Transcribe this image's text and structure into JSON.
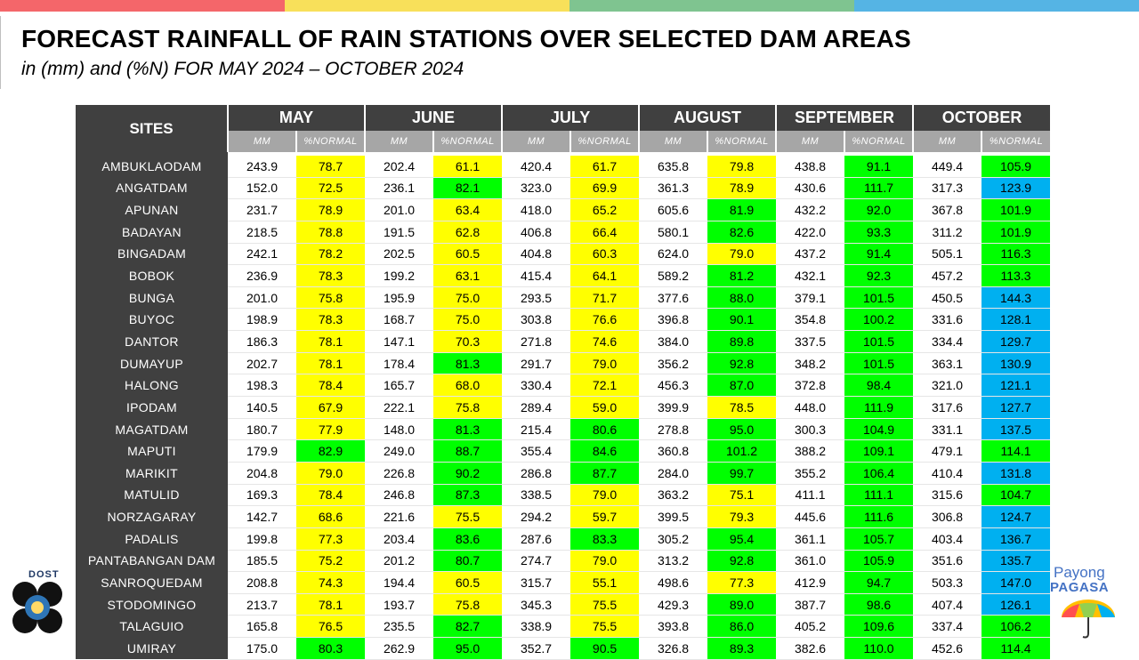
{
  "colors": {
    "topbar": [
      "#f4666a",
      "#f8e05a",
      "#7fc490",
      "#55b4e4"
    ],
    "yellow": "#ffff00",
    "green": "#00ff00",
    "blue": "#00b0f0"
  },
  "title": "FORECAST RAINFALL OF RAIN STATIONS OVER SELECTED DAM AREAS",
  "subtitle": "in (mm) and (%N) FOR MAY 2024 – OCTOBER 2024",
  "table": {
    "sites_header": "SITES",
    "months": [
      "MAY",
      "JUNE",
      "JULY",
      "AUGUST",
      "SEPTEMBER",
      "OCTOBER"
    ],
    "sub_headers": [
      "MM",
      "%NORMAL"
    ],
    "rows": [
      {
        "site": "AMBUKLAODAM",
        "values": [
          [
            "243.9",
            "78.7"
          ],
          [
            "202.4",
            "61.1"
          ],
          [
            "420.4",
            "61.7"
          ],
          [
            "635.8",
            "79.8"
          ],
          [
            "438.8",
            "91.1"
          ],
          [
            "449.4",
            "105.9"
          ]
        ]
      },
      {
        "site": "ANGATDAM",
        "values": [
          [
            "152.0",
            "72.5"
          ],
          [
            "236.1",
            "82.1"
          ],
          [
            "323.0",
            "69.9"
          ],
          [
            "361.3",
            "78.9"
          ],
          [
            "430.6",
            "111.7"
          ],
          [
            "317.3",
            "123.9"
          ]
        ]
      },
      {
        "site": "APUNAN",
        "values": [
          [
            "231.7",
            "78.9"
          ],
          [
            "201.0",
            "63.4"
          ],
          [
            "418.0",
            "65.2"
          ],
          [
            "605.6",
            "81.9"
          ],
          [
            "432.2",
            "92.0"
          ],
          [
            "367.8",
            "101.9"
          ]
        ]
      },
      {
        "site": "BADAYAN",
        "values": [
          [
            "218.5",
            "78.8"
          ],
          [
            "191.5",
            "62.8"
          ],
          [
            "406.8",
            "66.4"
          ],
          [
            "580.1",
            "82.6"
          ],
          [
            "422.0",
            "93.3"
          ],
          [
            "311.2",
            "101.9"
          ]
        ]
      },
      {
        "site": "BINGADAM",
        "values": [
          [
            "242.1",
            "78.2"
          ],
          [
            "202.5",
            "60.5"
          ],
          [
            "404.8",
            "60.3"
          ],
          [
            "624.0",
            "79.0"
          ],
          [
            "437.2",
            "91.4"
          ],
          [
            "505.1",
            "116.3"
          ]
        ]
      },
      {
        "site": "BOBOK",
        "values": [
          [
            "236.9",
            "78.3"
          ],
          [
            "199.2",
            "63.1"
          ],
          [
            "415.4",
            "64.1"
          ],
          [
            "589.2",
            "81.2"
          ],
          [
            "432.1",
            "92.3"
          ],
          [
            "457.2",
            "113.3"
          ]
        ]
      },
      {
        "site": "BUNGA",
        "values": [
          [
            "201.0",
            "75.8"
          ],
          [
            "195.9",
            "75.0"
          ],
          [
            "293.5",
            "71.7"
          ],
          [
            "377.6",
            "88.0"
          ],
          [
            "379.1",
            "101.5"
          ],
          [
            "450.5",
            "144.3"
          ]
        ]
      },
      {
        "site": "BUYOC",
        "values": [
          [
            "198.9",
            "78.3"
          ],
          [
            "168.7",
            "75.0"
          ],
          [
            "303.8",
            "76.6"
          ],
          [
            "396.8",
            "90.1"
          ],
          [
            "354.8",
            "100.2"
          ],
          [
            "331.6",
            "128.1"
          ]
        ]
      },
      {
        "site": "DANTOR",
        "values": [
          [
            "186.3",
            "78.1"
          ],
          [
            "147.1",
            "70.3"
          ],
          [
            "271.8",
            "74.6"
          ],
          [
            "384.0",
            "89.8"
          ],
          [
            "337.5",
            "101.5"
          ],
          [
            "334.4",
            "129.7"
          ]
        ]
      },
      {
        "site": "DUMAYUP",
        "values": [
          [
            "202.7",
            "78.1"
          ],
          [
            "178.4",
            "81.3"
          ],
          [
            "291.7",
            "79.0"
          ],
          [
            "356.2",
            "92.8"
          ],
          [
            "348.2",
            "101.5"
          ],
          [
            "363.1",
            "130.9"
          ]
        ]
      },
      {
        "site": "HALONG",
        "values": [
          [
            "198.3",
            "78.4"
          ],
          [
            "165.7",
            "68.0"
          ],
          [
            "330.4",
            "72.1"
          ],
          [
            "456.3",
            "87.0"
          ],
          [
            "372.8",
            "98.4"
          ],
          [
            "321.0",
            "121.1"
          ]
        ]
      },
      {
        "site": "IPODAM",
        "values": [
          [
            "140.5",
            "67.9"
          ],
          [
            "222.1",
            "75.8"
          ],
          [
            "289.4",
            "59.0"
          ],
          [
            "399.9",
            "78.5"
          ],
          [
            "448.0",
            "111.9"
          ],
          [
            "317.6",
            "127.7"
          ]
        ]
      },
      {
        "site": "MAGATDAM",
        "values": [
          [
            "180.7",
            "77.9"
          ],
          [
            "148.0",
            "81.3"
          ],
          [
            "215.4",
            "80.6"
          ],
          [
            "278.8",
            "95.0"
          ],
          [
            "300.3",
            "104.9"
          ],
          [
            "331.1",
            "137.5"
          ]
        ]
      },
      {
        "site": "MAPUTI",
        "values": [
          [
            "179.9",
            "82.9"
          ],
          [
            "249.0",
            "88.7"
          ],
          [
            "355.4",
            "84.6"
          ],
          [
            "360.8",
            "101.2"
          ],
          [
            "388.2",
            "109.1"
          ],
          [
            "479.1",
            "114.1"
          ]
        ]
      },
      {
        "site": "MARIKIT",
        "values": [
          [
            "204.8",
            "79.0"
          ],
          [
            "226.8",
            "90.2"
          ],
          [
            "286.8",
            "87.7"
          ],
          [
            "284.0",
            "99.7"
          ],
          [
            "355.2",
            "106.4"
          ],
          [
            "410.4",
            "131.8"
          ]
        ]
      },
      {
        "site": "MATULID",
        "values": [
          [
            "169.3",
            "78.4"
          ],
          [
            "246.8",
            "87.3"
          ],
          [
            "338.5",
            "79.0"
          ],
          [
            "363.2",
            "75.1"
          ],
          [
            "411.1",
            "111.1"
          ],
          [
            "315.6",
            "104.7"
          ]
        ]
      },
      {
        "site": "NORZAGARAY",
        "values": [
          [
            "142.7",
            "68.6"
          ],
          [
            "221.6",
            "75.5"
          ],
          [
            "294.2",
            "59.7"
          ],
          [
            "399.5",
            "79.3"
          ],
          [
            "445.6",
            "111.6"
          ],
          [
            "306.8",
            "124.7"
          ]
        ]
      },
      {
        "site": "PADALIS",
        "values": [
          [
            "199.8",
            "77.3"
          ],
          [
            "203.4",
            "83.6"
          ],
          [
            "287.6",
            "83.3"
          ],
          [
            "305.2",
            "95.4"
          ],
          [
            "361.1",
            "105.7"
          ],
          [
            "403.4",
            "136.7"
          ]
        ]
      },
      {
        "site": "PANTABANGAN DAM",
        "values": [
          [
            "185.5",
            "75.2"
          ],
          [
            "201.2",
            "80.7"
          ],
          [
            "274.7",
            "79.0"
          ],
          [
            "313.2",
            "92.8"
          ],
          [
            "361.0",
            "105.9"
          ],
          [
            "351.6",
            "135.7"
          ]
        ]
      },
      {
        "site": "SANROQUEDAM",
        "values": [
          [
            "208.8",
            "74.3"
          ],
          [
            "194.4",
            "60.5"
          ],
          [
            "315.7",
            "55.1"
          ],
          [
            "498.6",
            "77.3"
          ],
          [
            "412.9",
            "94.7"
          ],
          [
            "503.3",
            "147.0"
          ]
        ]
      },
      {
        "site": "STODOMINGO",
        "values": [
          [
            "213.7",
            "78.1"
          ],
          [
            "193.7",
            "75.8"
          ],
          [
            "345.3",
            "75.5"
          ],
          [
            "429.3",
            "89.0"
          ],
          [
            "387.7",
            "98.6"
          ],
          [
            "407.4",
            "126.1"
          ]
        ]
      },
      {
        "site": "TALAGUIO",
        "values": [
          [
            "165.8",
            "76.5"
          ],
          [
            "235.5",
            "82.7"
          ],
          [
            "338.9",
            "75.5"
          ],
          [
            "393.8",
            "86.0"
          ],
          [
            "405.2",
            "109.6"
          ],
          [
            "337.4",
            "106.2"
          ]
        ]
      },
      {
        "site": "UMIRAY",
        "values": [
          [
            "175.0",
            "80.3"
          ],
          [
            "262.9",
            "95.0"
          ],
          [
            "352.7",
            "90.5"
          ],
          [
            "326.8",
            "89.3"
          ],
          [
            "382.6",
            "110.0"
          ],
          [
            "452.6",
            "114.4"
          ]
        ]
      }
    ]
  },
  "logos": {
    "dost": "DOST",
    "pagasa_line1": "Payong",
    "pagasa_line2": "PAGASA"
  }
}
